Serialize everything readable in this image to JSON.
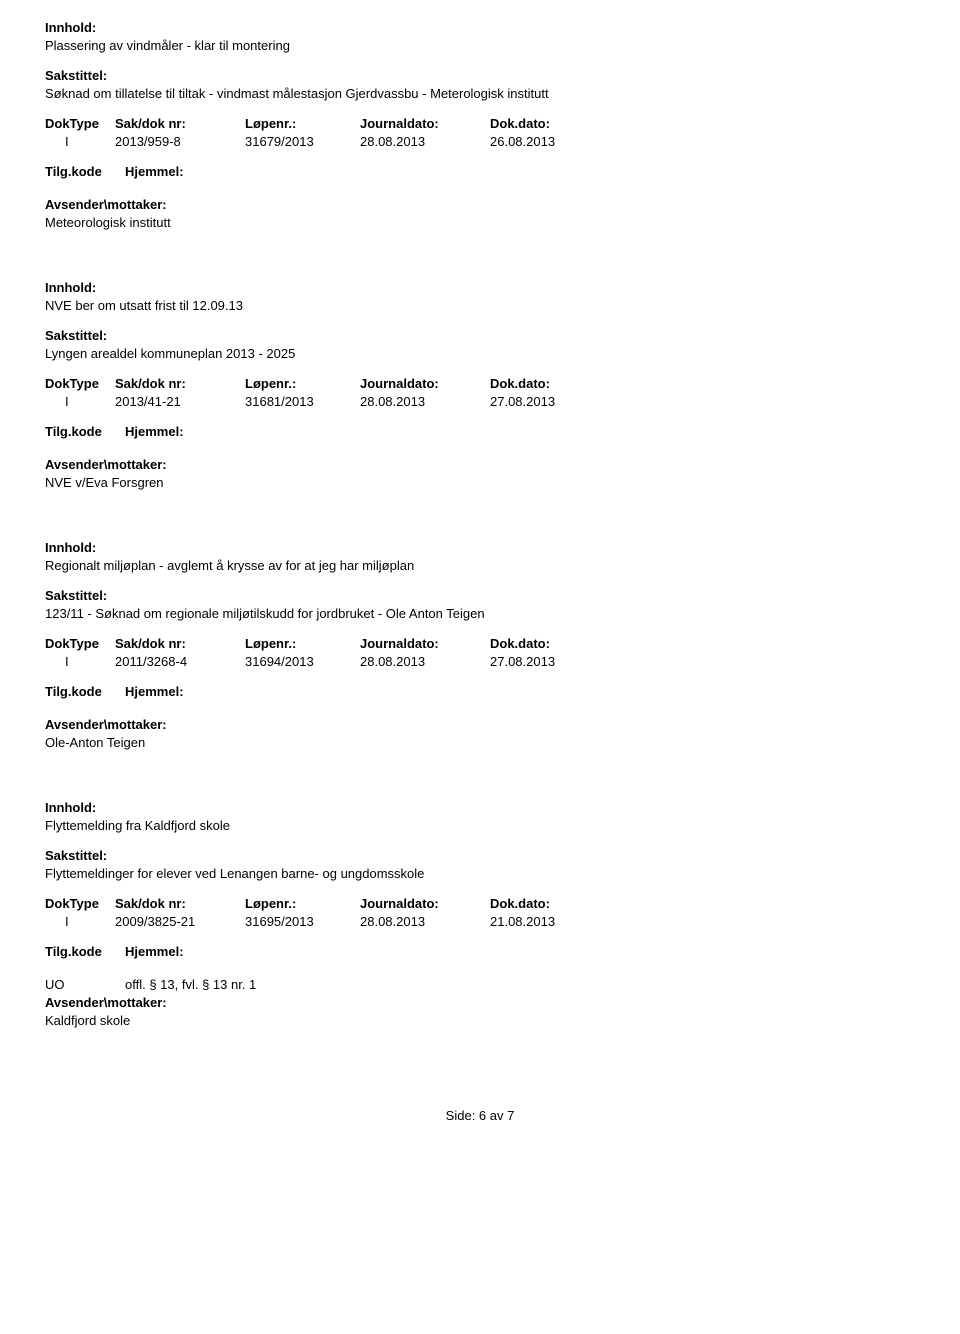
{
  "labels": {
    "innhold": "Innhold:",
    "sakstittel": "Sakstittel:",
    "doktype": "DokType",
    "saknr": "Sak/dok nr:",
    "lopenr": "Løpenr.:",
    "journaldato": "Journaldato:",
    "dokdato": "Dok.dato:",
    "tilgkode": "Tilg.kode",
    "hjemmel": "Hjemmel:",
    "avsender": "Avsender\\mottaker:"
  },
  "records": [
    {
      "innhold": "Plassering av vindmåler - klar til montering",
      "sakstittel": "Søknad om tillatelse til tiltak - vindmast målestasjon Gjerdvassbu - Meterologisk institutt",
      "doktype": "I",
      "saknr": "2013/959-8",
      "lopenr": "31679/2013",
      "journaldato": "28.08.2013",
      "dokdato": "26.08.2013",
      "tilgkode": "",
      "hjemmel": "",
      "avsender": "Meteorologisk institutt"
    },
    {
      "innhold": "NVE ber om utsatt frist til 12.09.13",
      "sakstittel": "Lyngen arealdel kommuneplan 2013 - 2025",
      "doktype": "I",
      "saknr": "2013/41-21",
      "lopenr": "31681/2013",
      "journaldato": "28.08.2013",
      "dokdato": "27.08.2013",
      "tilgkode": "",
      "hjemmel": "",
      "avsender": "NVE v/Eva Forsgren"
    },
    {
      "innhold": "Regionalt miljøplan - avglemt å krysse av for at jeg har miljøplan",
      "sakstittel": "123/11 - Søknad om regionale miljøtilskudd for jordbruket - Ole Anton Teigen",
      "doktype": "I",
      "saknr": "2011/3268-4",
      "lopenr": "31694/2013",
      "journaldato": "28.08.2013",
      "dokdato": "27.08.2013",
      "tilgkode": "",
      "hjemmel": "",
      "avsender": "Ole-Anton Teigen"
    },
    {
      "innhold": "Flyttemelding fra Kaldfjord skole",
      "sakstittel": "Flyttemeldinger for elever ved Lenangen barne- og ungdomsskole",
      "doktype": "I",
      "saknr": "2009/3825-21",
      "lopenr": "31695/2013",
      "journaldato": "28.08.2013",
      "dokdato": "21.08.2013",
      "tilgkode": "UO",
      "hjemmel": "offl. § 13, fvl. § 13 nr. 1",
      "avsender": "Kaldfjord skole"
    }
  ],
  "footer": {
    "text": "Side: 6 av 7"
  }
}
